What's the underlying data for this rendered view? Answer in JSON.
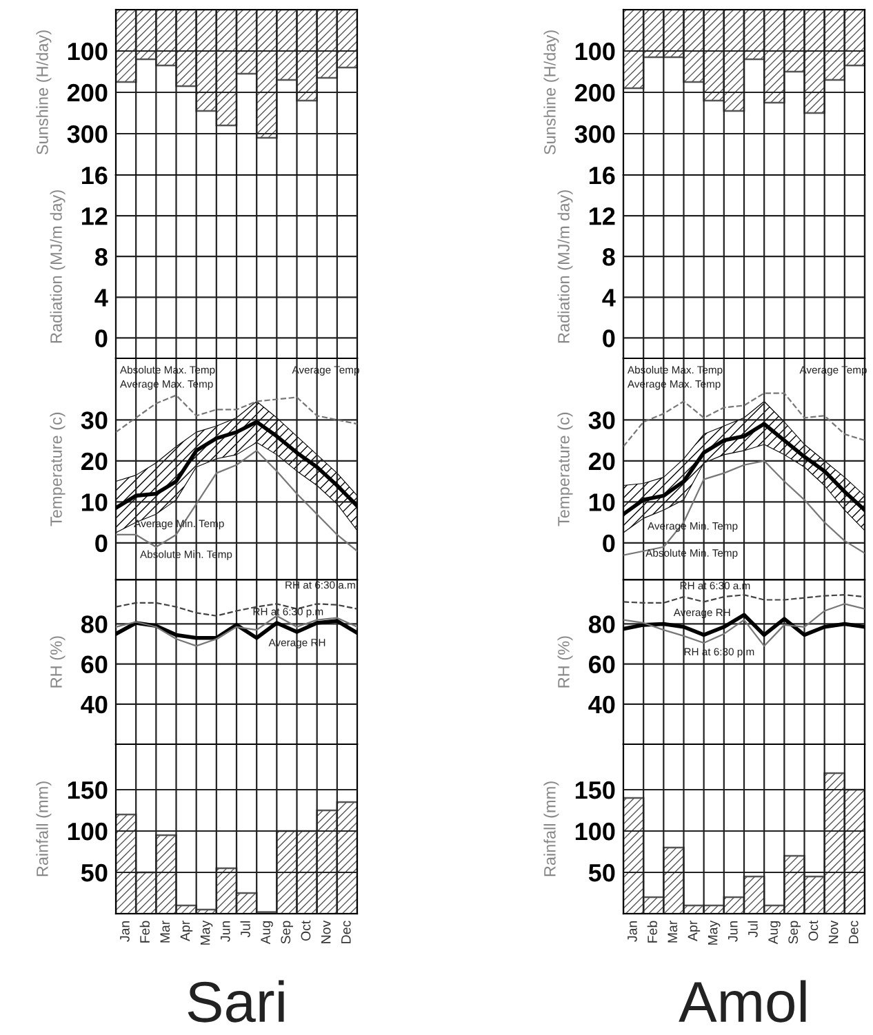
{
  "chart_data": [
    {
      "type": "bar",
      "ylabel": "Sunshine (H/day)",
      "categories": [
        null,
        null,
        null,
        null,
        null,
        null,
        null,
        null,
        null,
        null,
        null,
        null
      ],
      "values": [
        175,
        120,
        135,
        185,
        245,
        280,
        155,
        310,
        170,
        220,
        165,
        140
      ],
      "color": "#555555",
      "ylim": [
        400,
        0
      ],
      "yticks": [
        100,
        200,
        300
      ],
      "grid": true,
      "tick_labels": "y"
    },
    {
      "type": "line",
      "ylabel": "Radiation (MJ/m day)",
      "categories": [
        null,
        null,
        null,
        null,
        null,
        null,
        null,
        null,
        null,
        null,
        null,
        null,
        null
      ],
      "ylim": [
        -2,
        16
      ],
      "yticks": [
        0,
        4,
        8,
        12,
        16
      ],
      "grid": true,
      "tick_labels": "y"
    },
    {
      "type": "line",
      "ylabel": "Temperature (c)",
      "categories": [
        null,
        null,
        null,
        null,
        null,
        null,
        null,
        null,
        null,
        null,
        null,
        null,
        null
      ],
      "series": [
        {
          "color": "#000000",
          "values": [
            8.5,
            11.5,
            12,
            15,
            22.5,
            25.5,
            27,
            29.5,
            26,
            22,
            18.5,
            14,
            9
          ],
          "lower": [
            2.5,
            5,
            7,
            10.5,
            18.5,
            20.5,
            21.5,
            24.5,
            21.5,
            17.5,
            14,
            9.5,
            3
          ],
          "upper": [
            15,
            16.5,
            19.5,
            23.5,
            27,
            28.5,
            30.5,
            34.5,
            30.5,
            26,
            21.5,
            17,
            11.5
          ]
        },
        {
          "color": "#777777",
          "line_style": "dashed",
          "values": [
            27,
            30.5,
            34,
            36,
            31,
            32.5,
            32.5,
            34.5,
            35,
            35.5,
            31,
            30,
            29
          ]
        },
        {
          "color": "#777777",
          "values": [
            2,
            2,
            -1,
            2,
            9.5,
            17,
            19,
            22.5,
            17.5,
            12,
            7,
            2,
            -2
          ]
        }
      ],
      "annotations": [
        "Absolute Max. Temp",
        "Average Max. Temp",
        "Average Temp",
        "Average Min. Temp",
        "Absolute Min. Temp"
      ],
      "ylim": [
        -9,
        45
      ],
      "yticks": [
        0,
        10,
        20,
        30
      ],
      "grid": true,
      "tick_labels": "y"
    },
    {
      "type": "line",
      "ylabel": "RH (%)",
      "categories": [
        null,
        null,
        null,
        null,
        null,
        null,
        null,
        null,
        null,
        null,
        null,
        null,
        null
      ],
      "series": [
        {
          "color": "#000000",
          "values": [
            75,
            80.5,
            79,
            74.5,
            73,
            73,
            79.5,
            73,
            80.5,
            76,
            80.5,
            81.5,
            75.5
          ]
        },
        {
          "color": "#444444",
          "line_style": "dashed",
          "values": [
            88.5,
            90.5,
            90.5,
            88.5,
            85.5,
            84,
            86.5,
            88.5,
            90,
            87.5,
            90,
            89.5,
            87.5
          ]
        },
        {
          "color": "#777777",
          "values": [
            78.5,
            81,
            78.5,
            72.5,
            69,
            72.5,
            78.5,
            77,
            84,
            78.5,
            82,
            83,
            78.5
          ]
        }
      ],
      "annotations": [
        "RH at 6:30 a.m",
        "RH at 6:30 p.m",
        "Average RH"
      ],
      "ylim": [
        20,
        102
      ],
      "yticks": [
        40,
        60,
        80
      ],
      "grid": true,
      "tick_labels": "y"
    },
    {
      "type": "bar",
      "ylabel": "Rainfall (mm)",
      "xlabel": "Sari",
      "categories": [
        "Jan",
        "Feb",
        "Mar",
        "Apr",
        "May",
        "Jun",
        "Jul",
        "Aug",
        "Sep",
        "Oct",
        "Nov",
        "Dec"
      ],
      "values": [
        120,
        50,
        95,
        10,
        5,
        55,
        25,
        2,
        100,
        100,
        125,
        135
      ],
      "color": "#555555",
      "ylim": [
        0,
        205
      ],
      "yticks": [
        50,
        100,
        150
      ],
      "grid": true
    },
    {
      "type": "bar",
      "ylabel": "Sunshine (H/day)",
      "categories": [
        null,
        null,
        null,
        null,
        null,
        null,
        null,
        null,
        null,
        null,
        null,
        null
      ],
      "values": [
        190,
        115,
        115,
        175,
        220,
        245,
        120,
        225,
        150,
        250,
        170,
        135
      ],
      "color": "#555555",
      "ylim": [
        400,
        0
      ],
      "yticks": [
        100,
        200,
        300
      ],
      "grid": true,
      "tick_labels": "y"
    },
    {
      "type": "line",
      "ylabel": "Radiation (MJ/m day)",
      "categories": [
        null,
        null,
        null,
        null,
        null,
        null,
        null,
        null,
        null,
        null,
        null,
        null,
        null
      ],
      "ylim": [
        -2,
        16
      ],
      "yticks": [
        0,
        4,
        8,
        12,
        16
      ],
      "grid": true,
      "tick_labels": "y"
    },
    {
      "type": "line",
      "ylabel": "Temperature (c)",
      "categories": [
        null,
        null,
        null,
        null,
        null,
        null,
        null,
        null,
        null,
        null,
        null,
        null,
        null
      ],
      "series": [
        {
          "color": "#000000",
          "values": [
            7,
            10.5,
            11.5,
            15,
            22,
            25,
            26,
            29,
            25,
            21,
            17.5,
            12.5,
            8
          ],
          "lower": [
            2.5,
            6,
            8,
            10.5,
            19.5,
            21.5,
            22.5,
            24,
            21.5,
            18.5,
            14,
            8,
            3
          ],
          "upper": [
            14,
            14.5,
            16,
            20.5,
            26.5,
            28.5,
            30.5,
            34.5,
            29.5,
            24,
            20,
            16,
            11.5
          ]
        },
        {
          "color": "#777777",
          "line_style": "dashed",
          "values": [
            23.5,
            29.5,
            31.5,
            34.5,
            30.5,
            33,
            33.5,
            36.5,
            36.5,
            30.5,
            31,
            26.5,
            25
          ]
        },
        {
          "color": "#777777",
          "values": [
            -3,
            -2,
            -1,
            5,
            15.5,
            17,
            19,
            20,
            15,
            10.5,
            5,
            0.5,
            -2.5
          ]
        }
      ],
      "annotations": [
        "Absolute Max. Temp",
        "Average Max. Temp",
        "Average Temp",
        "Average Min. Temp",
        "Absolute Min. Temp"
      ],
      "ylim": [
        -9,
        45
      ],
      "yticks": [
        0,
        10,
        20,
        30
      ],
      "grid": true,
      "tick_labels": "y"
    },
    {
      "type": "line",
      "ylabel": "RH (%)",
      "categories": [
        null,
        null,
        null,
        null,
        null,
        null,
        null,
        null,
        null,
        null,
        null,
        null,
        null
      ],
      "series": [
        {
          "color": "#000000",
          "values": [
            77.5,
            79.5,
            80,
            78.5,
            74.5,
            78.5,
            84.5,
            74.5,
            82.5,
            74.5,
            78.5,
            80,
            78.5
          ]
        },
        {
          "color": "#444444",
          "line_style": "dashed",
          "values": [
            91,
            90.5,
            90.5,
            93.5,
            91,
            93.5,
            94.5,
            92,
            92,
            93,
            94,
            94.5,
            93.5
          ]
        },
        {
          "color": "#777777",
          "values": [
            82,
            80.5,
            77,
            74,
            70.5,
            75,
            82,
            69,
            79.5,
            78.5,
            86.5,
            90,
            87.5
          ]
        }
      ],
      "annotations": [
        "RH at 6:30 a.m",
        "Average RH",
        "RH at 6:30 p.m"
      ],
      "ylim": [
        20,
        102
      ],
      "yticks": [
        40,
        60,
        80
      ],
      "grid": true,
      "tick_labels": "y"
    },
    {
      "type": "bar",
      "ylabel": "Rainfall (mm)",
      "xlabel": "Amol",
      "categories": [
        "Jan",
        "Feb",
        "Mar",
        "Apr",
        "May",
        "Jun",
        "Jul",
        "Aug",
        "Sep",
        "Oct",
        "Nov",
        "Dec"
      ],
      "values": [
        140,
        20,
        80,
        10,
        10,
        20,
        45,
        10,
        70,
        45,
        170,
        150
      ],
      "color": "#555555",
      "ylim": [
        0,
        205
      ],
      "yticks": [
        50,
        100,
        150
      ],
      "grid": true
    }
  ]
}
